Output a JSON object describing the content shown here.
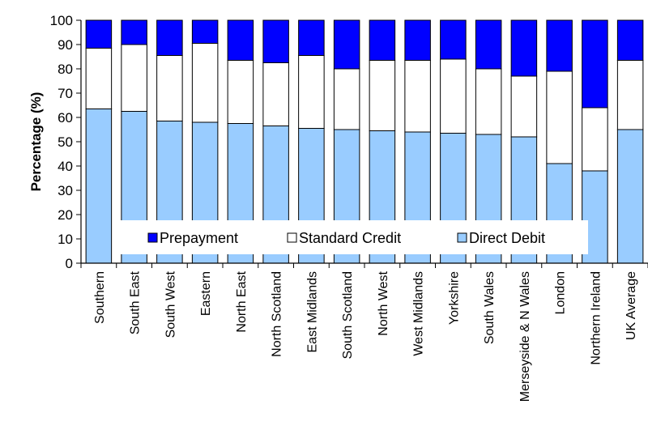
{
  "chart_data": {
    "type": "bar",
    "stacked": true,
    "title": "",
    "xlabel": "",
    "ylabel": "Percentage (%)",
    "ylim": [
      0,
      100
    ],
    "yticks": [
      0,
      10,
      20,
      30,
      40,
      50,
      60,
      70,
      80,
      90,
      100
    ],
    "grid": false,
    "legend_position": "bottom-inside",
    "categories": [
      "Southern",
      "South East",
      "South West",
      "Eastern",
      "North East",
      "North Scotland",
      "East Midlands",
      "South Scotland",
      "North West",
      "West Midlands",
      "Yorkshire",
      "South Wales",
      "Merseyside & N Wales",
      "London",
      "Northern Ireland",
      "UK Average"
    ],
    "series": [
      {
        "name": "Direct Debit",
        "color": "#99ccff",
        "values": [
          63.5,
          62.5,
          58.5,
          58,
          57.5,
          56.5,
          55.5,
          55,
          54.5,
          54,
          53.5,
          53,
          52,
          41,
          38,
          55
        ]
      },
      {
        "name": "Standard Credit",
        "color": "#ffffff",
        "values": [
          25,
          27.5,
          27,
          32.5,
          26,
          26,
          30,
          25,
          29,
          29.5,
          30.5,
          27,
          25,
          38,
          26,
          28.5
        ]
      },
      {
        "name": "Prepayment",
        "color": "#0000ff",
        "values": [
          11.5,
          10,
          14.5,
          9.5,
          16.5,
          17.5,
          14.5,
          20,
          16.5,
          16.5,
          16,
          20,
          23,
          21,
          36,
          16.5
        ]
      }
    ],
    "legend_order": [
      "Prepayment",
      "Standard Credit",
      "Direct Debit"
    ]
  }
}
